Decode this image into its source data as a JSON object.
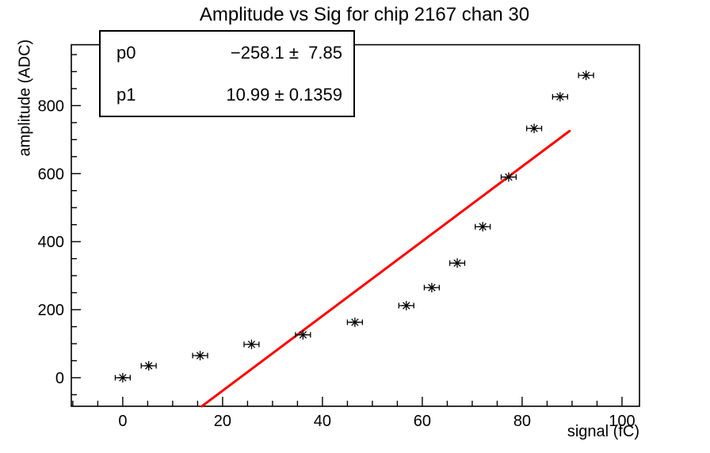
{
  "header": {
    "title": "Amplitude vs Sig for chip 2167 chan 30"
  },
  "stats_box": {
    "rows": [
      {
        "name": "p0",
        "value": "−258.1 ±  7.85"
      },
      {
        "name": "p1",
        "value": "10.99 ± 0.1359"
      }
    ]
  },
  "axes": {
    "x_label": "signal (fC)",
    "y_label": "amplitude (ADC)"
  },
  "chart_data": {
    "type": "scatter",
    "title": "Amplitude vs Sig for chip 2167 chan 30",
    "xlabel": "signal (fC)",
    "ylabel": "amplitude (ADC)",
    "xlim": [
      -10.3,
      103.5
    ],
    "ylim": [
      -84,
      979
    ],
    "x_major_ticks": [
      0,
      20,
      40,
      60,
      80,
      100
    ],
    "x_minor_step": 5,
    "y_major_ticks": [
      0,
      200,
      400,
      600,
      800
    ],
    "y_minor_step": 50,
    "grid": false,
    "legend": "none",
    "marker_style": "asterisk",
    "marker_color": "#000000",
    "frame_color": "#000000",
    "points": [
      {
        "x": 0.0,
        "y": 0,
        "xerr": 1.5
      },
      {
        "x": 5.2,
        "y": 35,
        "xerr": 1.5
      },
      {
        "x": 15.5,
        "y": 65,
        "xerr": 1.5
      },
      {
        "x": 25.8,
        "y": 98,
        "xerr": 1.5
      },
      {
        "x": 36.1,
        "y": 126,
        "xerr": 1.5
      },
      {
        "x": 46.5,
        "y": 163,
        "xerr": 1.5
      },
      {
        "x": 56.8,
        "y": 212,
        "xerr": 1.5
      },
      {
        "x": 61.9,
        "y": 265,
        "xerr": 1.5
      },
      {
        "x": 67.0,
        "y": 337,
        "xerr": 1.5
      },
      {
        "x": 72.1,
        "y": 444,
        "xerr": 1.5
      },
      {
        "x": 77.3,
        "y": 590,
        "xerr": 1.5
      },
      {
        "x": 82.4,
        "y": 733,
        "xerr": 1.5
      },
      {
        "x": 87.6,
        "y": 826,
        "xerr": 1.5
      },
      {
        "x": 92.8,
        "y": 889,
        "xerr": 1.5
      }
    ],
    "fit": {
      "function": "p0 + p1*x",
      "p0": -258.1,
      "p0_err": 7.85,
      "p1": 10.99,
      "p1_err": 0.1359,
      "x_draw_max": 89.5,
      "color": "#ff0000",
      "line_width": 3
    }
  }
}
